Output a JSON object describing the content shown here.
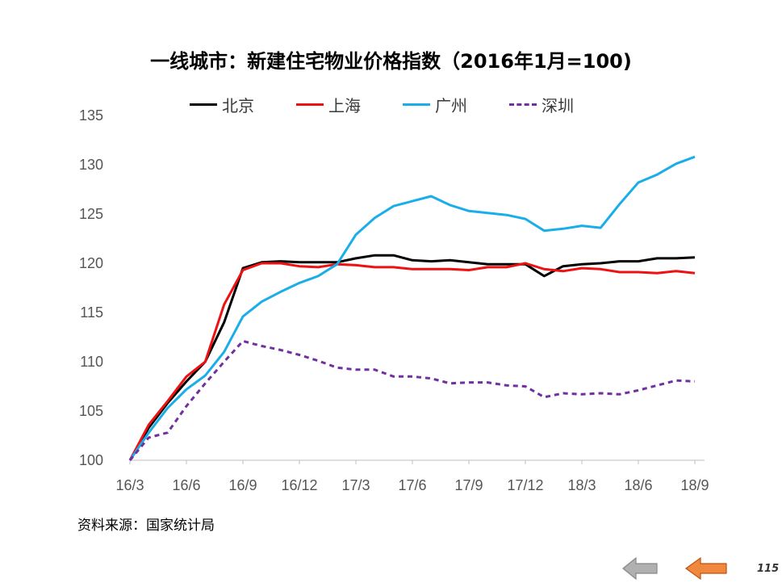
{
  "title": "一线城市：新建住宅物业价格指数（2016年1月=100)",
  "source_note": "资料来源：国家统计局",
  "page_number": "115",
  "nav": {
    "prev_icon": "left-arrow-icon-gray",
    "back_icon": "left-arrow-icon-orange",
    "prev_color": "#b0b0b0",
    "back_color": "#f0883e"
  },
  "chart_data": {
    "type": "line",
    "title": "一线城市：新建住宅物业价格指数（2016年1月=100)",
    "xlabel": "",
    "ylabel": "",
    "ylim": [
      100,
      135
    ],
    "yticks": [
      "100",
      "105",
      "110",
      "115",
      "120",
      "125",
      "130",
      "135"
    ],
    "x_tick_labels": [
      "16/3",
      "16/6",
      "16/9",
      "16/12",
      "17/3",
      "17/6",
      "17/9",
      "17/12",
      "18/3",
      "18/6",
      "18/9"
    ],
    "x": [
      "16/3",
      "16/4",
      "16/5",
      "16/6",
      "16/7",
      "16/8",
      "16/9",
      "16/10",
      "16/11",
      "16/12",
      "17/1",
      "17/2",
      "17/3",
      "17/4",
      "17/5",
      "17/6",
      "17/7",
      "17/8",
      "17/9",
      "17/10",
      "17/11",
      "17/12",
      "18/1",
      "18/2",
      "18/3",
      "18/4",
      "18/5",
      "18/6",
      "18/7",
      "18/8",
      "18/9"
    ],
    "grid": false,
    "legend_position": "top",
    "series": [
      {
        "name": "北京",
        "color": "#000000",
        "dash": "solid",
        "values": [
          100,
          103.3,
          105.8,
          108.0,
          110.0,
          114.0,
          119.5,
          120.1,
          120.2,
          120.1,
          120.1,
          120.1,
          120.5,
          120.8,
          120.8,
          120.3,
          120.2,
          120.3,
          120.1,
          119.9,
          119.9,
          119.9,
          118.7,
          119.7,
          119.9,
          120.0,
          120.2,
          120.2,
          120.5,
          120.5,
          120.6
        ]
      },
      {
        "name": "上海",
        "color": "#ee1111",
        "dash": "solid",
        "values": [
          100,
          103.6,
          106.0,
          108.5,
          110.0,
          115.8,
          119.3,
          120.0,
          120.0,
          119.7,
          119.6,
          119.9,
          119.8,
          119.6,
          119.6,
          119.4,
          119.4,
          119.4,
          119.3,
          119.6,
          119.6,
          120.0,
          119.4,
          119.2,
          119.5,
          119.4,
          119.1,
          119.1,
          119.0,
          119.2,
          119.0
        ]
      },
      {
        "name": "广州",
        "color": "#1aaee8",
        "dash": "solid",
        "values": [
          100,
          102.8,
          105.3,
          107.2,
          108.6,
          111.0,
          114.6,
          116.1,
          117.1,
          118.0,
          118.7,
          119.9,
          122.9,
          124.6,
          125.8,
          126.3,
          126.8,
          125.9,
          125.3,
          125.1,
          124.9,
          124.5,
          123.3,
          123.5,
          123.8,
          123.6,
          126.0,
          128.2,
          129.0,
          130.1,
          130.8
        ]
      },
      {
        "name": "深圳",
        "color": "#7030a0",
        "dash": "dashed",
        "values": [
          100,
          102.3,
          102.8,
          105.5,
          107.8,
          110.0,
          112.1,
          111.6,
          111.2,
          110.7,
          110.1,
          109.4,
          109.2,
          109.2,
          108.5,
          108.5,
          108.3,
          107.8,
          107.9,
          107.9,
          107.6,
          107.5,
          106.4,
          106.8,
          106.7,
          106.8,
          106.7,
          107.1,
          107.6,
          108.1,
          108.0
        ]
      }
    ]
  }
}
